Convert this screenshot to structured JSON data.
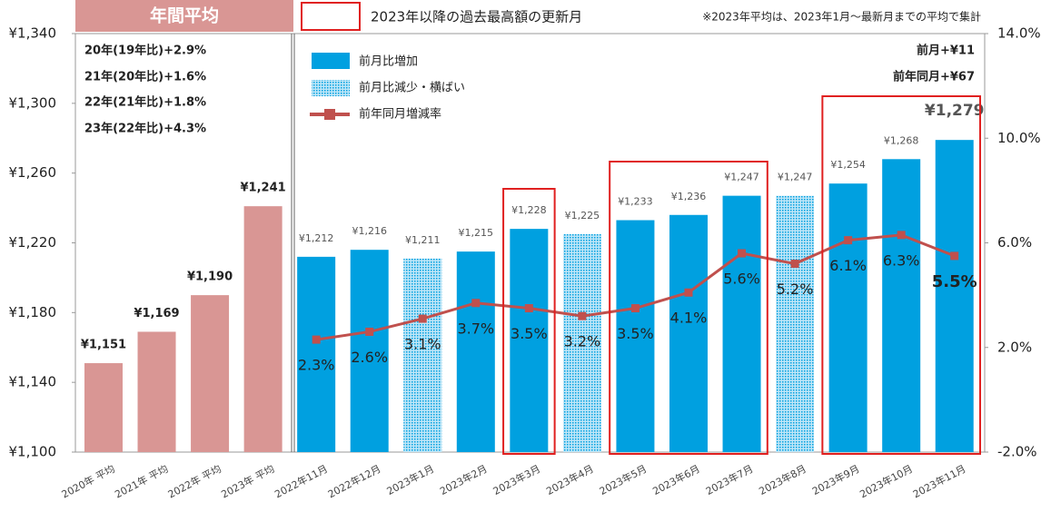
{
  "chart_data": {
    "type": "bar",
    "categories": [
      "2020年 平均",
      "2021年 平均",
      "2022年 平均",
      "2023年 平均",
      "2022年11月",
      "2022年12月",
      "2023年1月",
      "2023年2月",
      "2023年3月",
      "2023年4月",
      "2023年5月",
      "2023年6月",
      "2023年7月",
      "2023年8月",
      "2023年9月",
      "2023年10月",
      "2023年11月"
    ],
    "series": [
      {
        "name": "年間平均",
        "color": "#d99694",
        "values": [
          1151,
          1169,
          1190,
          1241,
          null,
          null,
          null,
          null,
          null,
          null,
          null,
          null,
          null,
          null,
          null,
          null,
          null
        ],
        "value_labels": [
          "¥1,151",
          "¥1,169",
          "¥1,190",
          "¥1,241",
          null,
          null,
          null,
          null,
          null,
          null,
          null,
          null,
          null,
          null,
          null,
          null,
          null
        ]
      },
      {
        "name": "前月比増加",
        "color": "#00a0e0",
        "values": [
          null,
          null,
          null,
          null,
          1212,
          1216,
          null,
          1215,
          1228,
          null,
          1233,
          1236,
          1247,
          null,
          1254,
          1268,
          1279
        ],
        "value_labels": [
          null,
          null,
          null,
          null,
          "¥1,212",
          "¥1,216",
          null,
          "¥1,215",
          "¥1,228",
          null,
          "¥1,233",
          "¥1,236",
          "¥1,247",
          null,
          "¥1,254",
          "¥1,268",
          "¥1,279"
        ]
      },
      {
        "name": "前月比減少・横ばい",
        "color": "#00a0e0",
        "pattern": "dots",
        "values": [
          null,
          null,
          null,
          null,
          null,
          null,
          1211,
          null,
          null,
          1225,
          null,
          null,
          null,
          1247,
          null,
          null,
          null
        ],
        "value_labels": [
          null,
          null,
          null,
          null,
          null,
          null,
          "¥1,211",
          null,
          null,
          "¥1,225",
          null,
          null,
          null,
          "¥1,247",
          null,
          null,
          null
        ]
      },
      {
        "name": "前年同月増減率",
        "type": "line",
        "axis": "y2",
        "color": "#c0504d",
        "values": [
          null,
          null,
          null,
          null,
          2.3,
          2.6,
          3.1,
          3.7,
          3.5,
          3.2,
          3.5,
          4.1,
          5.6,
          5.2,
          6.1,
          6.3,
          5.5
        ],
        "value_labels": [
          null,
          null,
          null,
          null,
          "2.3%",
          "2.6%",
          "3.1%",
          "3.7%",
          "3.5%",
          "3.2%",
          "3.5%",
          "4.1%",
          "5.6%",
          "5.2%",
          "6.1%",
          "6.3%",
          "5.5%"
        ]
      }
    ],
    "ylim": [
      1100,
      1340
    ],
    "yticks": [
      {
        "value": 1100,
        "label": "¥1,100"
      },
      {
        "value": 1140,
        "label": "¥1,140"
      },
      {
        "value": 1180,
        "label": "¥1,180"
      },
      {
        "value": 1220,
        "label": "¥1,220"
      },
      {
        "value": 1260,
        "label": "¥1,260"
      },
      {
        "value": 1300,
        "label": "¥1,300"
      },
      {
        "value": 1340,
        "label": "¥1,340"
      }
    ],
    "y2lim": [
      -2,
      14
    ],
    "y2ticks": [
      {
        "value": -2,
        "label": "-2.0%"
      },
      {
        "value": 2,
        "label": "2.0%"
      },
      {
        "value": 6,
        "label": "6.0%"
      },
      {
        "value": 10,
        "label": "10.0%"
      },
      {
        "value": 14,
        "label": "14.0%"
      }
    ],
    "annotations": [
      "2023年以降の過去最高額の更新月",
      "※2023年平均は、2023年1月～最新月までの平均で集計",
      "20年(19年比)+2.9%",
      "21年(20年比)+1.6%",
      "22年(21年比)+1.8%",
      "23年(22年比)+4.3%",
      "前月+¥11",
      "前年同月+¥67"
    ]
  }
}
